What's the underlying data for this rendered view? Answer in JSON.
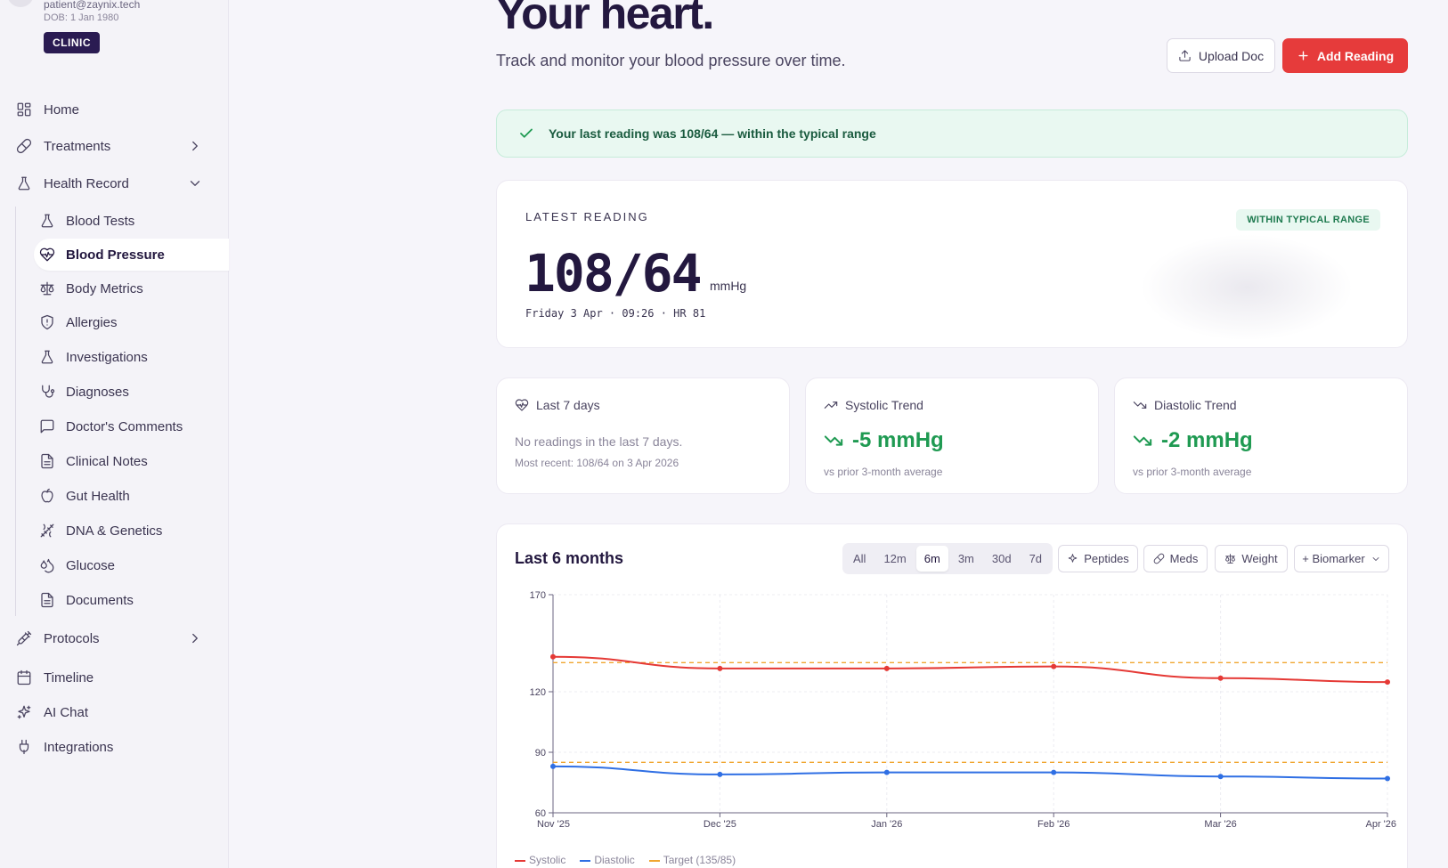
{
  "user": {
    "email": "patient@zaynix.tech",
    "dob": "DOB: 1 Jan 1980",
    "badge": "CLINIC"
  },
  "nav": {
    "home": "Home",
    "treatments": "Treatments",
    "health_record": "Health Record",
    "sub": [
      "Blood Tests",
      "Blood Pressure",
      "Body Metrics",
      "Allergies",
      "Investigations",
      "Diagnoses",
      "Doctor's Comments",
      "Clinical Notes",
      "Gut Health",
      "DNA & Genetics",
      "Glucose",
      "Documents"
    ],
    "protocols": "Protocols",
    "timeline": "Timeline",
    "ai_chat": "AI Chat",
    "integrations": "Integrations"
  },
  "header": {
    "title": "Your heart.",
    "subtitle": "Track and monitor your blood pressure over time.",
    "upload_label": "Upload Doc",
    "add_label": "Add Reading"
  },
  "alert": {
    "text": "Your last reading was 108/64 — within the typical range"
  },
  "latest": {
    "label": "LATEST READING",
    "badge": "WITHIN TYPICAL RANGE",
    "value": "108/64",
    "unit": "mmHg",
    "meta": "Friday 3 Apr · 09:26 · HR 81"
  },
  "stats": {
    "last7": {
      "title": "Last 7 days",
      "message": "No readings in the last 7 days.",
      "recent": "Most recent: 108/64 on 3 Apr 2026"
    },
    "systolic": {
      "title": "Systolic Trend",
      "value": "-5 mmHg",
      "note": "vs prior 3-month average"
    },
    "diastolic": {
      "title": "Diastolic Trend",
      "value": "-2 mmHg",
      "note": "vs prior 3-month average"
    }
  },
  "chart_panel": {
    "title": "Last 6 months",
    "ranges": [
      "All",
      "12m",
      "6m",
      "3m",
      "30d",
      "7d"
    ],
    "active_range": "6m",
    "chips": {
      "peptides": "Peptides",
      "meds": "Meds",
      "weight": "Weight",
      "biomarker": "+ Biomarker"
    }
  },
  "colors": {
    "systolic": "#e53935",
    "diastolic": "#2f6fe4",
    "target": "#f0a630",
    "accent": "#e63b3b",
    "brand": "#23183f",
    "positive": "#1f9a52"
  },
  "chart_data": {
    "type": "line",
    "x": [
      "Nov '25",
      "Dec '25",
      "Jan '26",
      "Feb '26",
      "Mar '26",
      "Apr '26"
    ],
    "series": [
      {
        "name": "Systolic",
        "values": [
          138,
          132,
          132,
          133,
          127,
          125
        ]
      },
      {
        "name": "Diastolic",
        "values": [
          83,
          79,
          80,
          80,
          78,
          77
        ]
      }
    ],
    "target": {
      "name": "Target (135/85)",
      "systolic": 135,
      "diastolic": 85
    },
    "yticks": [
      60,
      90,
      120,
      170
    ],
    "ylim": [
      60,
      170
    ],
    "grid": true,
    "legend": "bottom-left"
  }
}
